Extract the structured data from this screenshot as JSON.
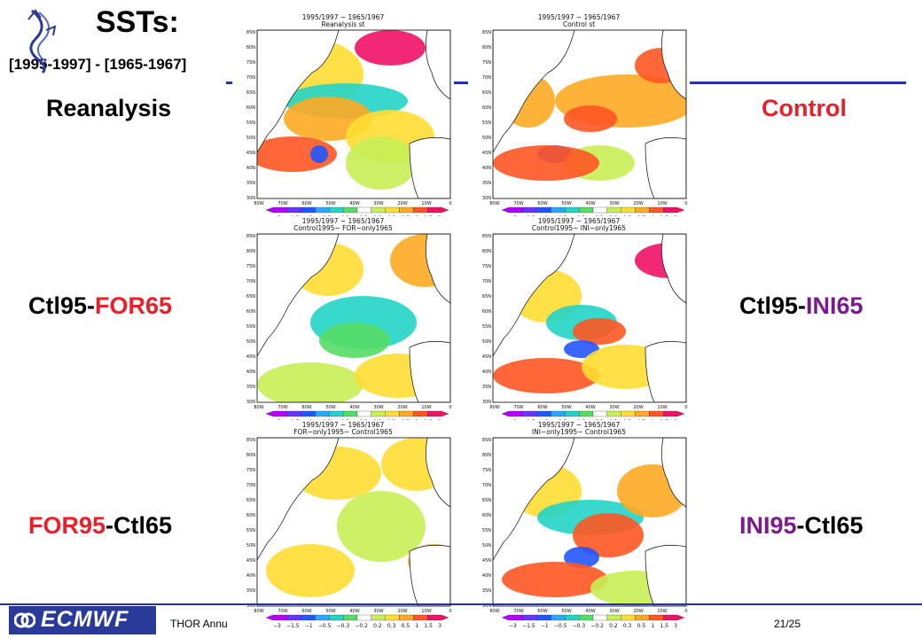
{
  "slide": {
    "title": "SSTs:",
    "subtitle": "[1995-1997] - [1965-1967]",
    "footer_text": "THOR Annu",
    "page": "21/25",
    "logo_text": "ECMWF"
  },
  "labels": {
    "reanalysis": "Reanalysis",
    "control": "Control",
    "ctl95for65_a": "Ctl95-",
    "ctl95for65_b": "FOR65",
    "ctl95ini65_a": "Ctl95-",
    "ctl95ini65_b": "INI65",
    "for95ctl65_a": "FOR95",
    "for95ctl65_b": "-Ctl65",
    "ini95ctl65_a": "INI95",
    "ini95ctl65_b": "-Ctl65"
  },
  "panels": [
    {
      "line1": "1995/1997 − 1965/1967",
      "line2": "Reanalysis st"
    },
    {
      "line1": "1995/1997 − 1965/1967",
      "line2": "Control st"
    },
    {
      "line1": "1995/1997 − 1965/1967",
      "line2": "Control1995− FOR−only1965"
    },
    {
      "line1": "1995/1997 − 1965/1967",
      "line2": "Control1995− INI−only1965"
    },
    {
      "line1": "1995/1997 − 1965/1967",
      "line2": "FOR−only1995− Control1965"
    },
    {
      "line1": "1995/1997 − 1965/1967",
      "line2": "INI−only1995− Control1965"
    }
  ],
  "colorbar": {
    "ticks": [
      "−3",
      "−1.5",
      "−1",
      "−0.5",
      "−0.3",
      "−0.2",
      "0.2",
      "0.3",
      "0.5",
      "1",
      "1.5",
      "3"
    ],
    "colors": [
      "#b400ff",
      "#6633ff",
      "#2255ff",
      "#2aa8ff",
      "#22d4c8",
      "#55dd66",
      "#ffffff",
      "#c8ee55",
      "#ffdd33",
      "#ffaa22",
      "#ff5522",
      "#ee1166"
    ]
  },
  "map_axes": {
    "lat": [
      "85N",
      "80N",
      "75N",
      "70N",
      "65N",
      "60N",
      "55N",
      "50N",
      "45N",
      "40N",
      "35N",
      "30N"
    ],
    "lon": [
      "80W",
      "70W",
      "60W",
      "50W",
      "40W",
      "30W",
      "20W",
      "10W",
      "0"
    ]
  }
}
